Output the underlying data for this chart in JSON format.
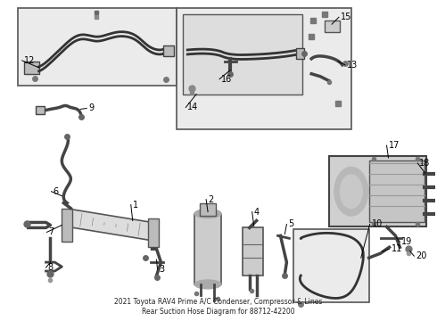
{
  "bg_color": "#ffffff",
  "dot_bg": "#e8e8f0",
  "line_color": "#333333",
  "label_color": "#000000",
  "box_edge": "#555555",
  "title": "2021 Toyota RAV4 Prime A/C Condenser, Compressor & Lines\nRear Suction Hose Diagram for 88712-42200"
}
